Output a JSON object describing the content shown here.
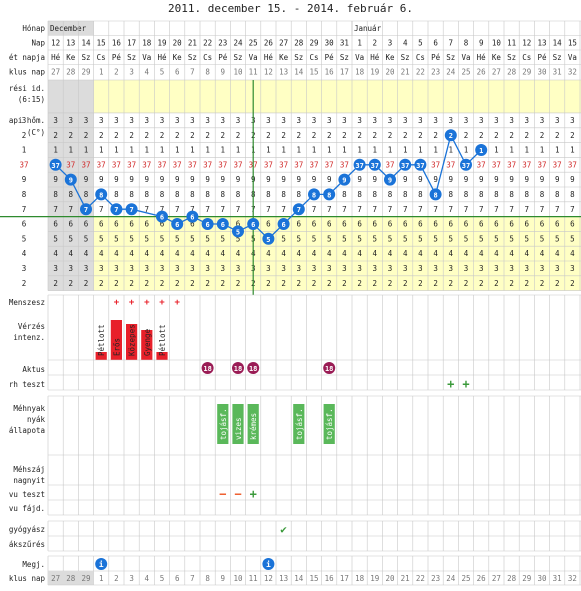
{
  "title": "2011. december 15. - 2014. február 6.",
  "colors": {
    "accent": "#1a73d8",
    "grid": "#c8c8c8",
    "period": "#e8202a",
    "relevant_bg": "#ffffc4",
    "gray_bg": "#dcdcdc",
    "red_num": "#d02828",
    "green_line": "#2e8a2e",
    "pink_marker": "#9a1c55",
    "green_test": "#3b9a3b",
    "orange_test": "#ee5522"
  },
  "labels": {
    "honap": "Hónap",
    "nap": "Nap",
    "het_napja": "ét napja",
    "ciklus_nap": "klus nap",
    "meresi_id": "rési id.",
    "meresi_id2": "(6:15)",
    "apihom": "api hőm.",
    "celsius": "(C°)",
    "menszesz": "Menszesz",
    "verzes": "Vérzés",
    "intenz": "intenz.",
    "aktus": "Aktus",
    "terh_teszt": "rh teszt",
    "mehnyak": "Méhnyak",
    "nyak": "nyák",
    "allapota": "állapota",
    "mehszaj": "Méhszáj",
    "nyitottsag": "nagnyit",
    "ovu_teszt": "vu teszt",
    "ovu_fajd": "vu fájd.",
    "gyogyszer": "gyógyász",
    "szures": "ákszűrés",
    "megj": "Megj.",
    "ciklus_nap2": "klus nap"
  },
  "months": [
    "December",
    "Január"
  ],
  "days": [
    12,
    13,
    14,
    15,
    16,
    17,
    18,
    19,
    20,
    21,
    22,
    23,
    24,
    25,
    26,
    27,
    28,
    29,
    30,
    31,
    1,
    2,
    3,
    4,
    5,
    6,
    7,
    8,
    9,
    10,
    11,
    12,
    13,
    14,
    15,
    16
  ],
  "weekdays": [
    "Hé",
    "Ke",
    "Sz",
    "Cs",
    "Pé",
    "Sz",
    "Va",
    "Hé",
    "Ke",
    "Sz",
    "Cs",
    "Pé",
    "Sz",
    "Va",
    "Hé",
    "Ke",
    "Sz",
    "Cs",
    "Pé",
    "Sz",
    "Va",
    "Hé",
    "Ke",
    "Sz",
    "Cs",
    "Pé",
    "Sz",
    "Va",
    "Hé",
    "Ke",
    "Sz",
    "Cs",
    "Pé",
    "Sz",
    "Va",
    "Hé"
  ],
  "cycle_days": [
    27,
    28,
    29,
    1,
    2,
    3,
    4,
    5,
    6,
    7,
    8,
    9,
    10,
    11,
    12,
    13,
    14,
    15,
    16,
    17,
    18,
    19,
    20,
    21,
    22,
    23,
    24,
    25,
    26,
    27,
    28,
    29,
    30,
    31,
    32,
    33
  ],
  "temp_scale_digits": [
    "3",
    "2",
    "1",
    "37",
    "9",
    "8",
    "7",
    "6",
    "5",
    "4",
    "3",
    "2"
  ],
  "chart_data": {
    "type": "line",
    "ylabel": "(C°)",
    "x_days": [
      12,
      13,
      14,
      15,
      16,
      17,
      18,
      19,
      20,
      21,
      22,
      23,
      24,
      25,
      26,
      27,
      28,
      29,
      30,
      31,
      1,
      2,
      3,
      4,
      5,
      6,
      7,
      8,
      9,
      10,
      11,
      12,
      13,
      14,
      15,
      16
    ],
    "y_unit": "°C",
    "ylim": [
      36.2,
      37.3
    ],
    "series": [
      {
        "values": [
          37.0,
          36.9,
          36.7,
          36.8,
          36.7,
          36.7,
          null,
          36.65,
          36.6,
          36.65,
          36.6,
          36.6,
          36.55,
          36.6,
          36.5,
          36.6,
          36.7,
          36.8,
          36.8,
          36.9,
          37.0,
          37.0,
          36.9,
          37.0,
          37.0,
          36.8,
          37.2,
          37.0,
          37.1,
          null,
          null,
          null,
          null,
          null,
          null,
          null
        ]
      }
    ],
    "coverline": 36.65,
    "ovulation_day": 25
  },
  "menses": {
    "markers": [
      "+",
      "+",
      "+",
      "+",
      "+"
    ],
    "bars": [
      {
        "day_index": 3,
        "label": "Pétlott"
      },
      {
        "day_index": 4,
        "label": "Erős"
      },
      {
        "day_index": 5,
        "label": "Közepes"
      },
      {
        "day_index": 6,
        "label": "Gyenge"
      },
      {
        "day_index": 7,
        "label": "Pétlott"
      }
    ]
  },
  "intercourse_marker": "18",
  "mucus": [
    {
      "day_index": 11,
      "label": "tojásf."
    },
    {
      "day_index": 12,
      "label": "vizes"
    },
    {
      "day_index": 13,
      "label": "krémes"
    },
    {
      "day_index": 16,
      "label": "tojásf."
    },
    {
      "day_index": 18,
      "label": "tojásf."
    }
  ],
  "tests": {
    "pregnancy": [
      "+",
      "+"
    ],
    "ovulation": [
      "−",
      "−",
      "+"
    ]
  },
  "medication_mark": "✔",
  "note_marker": "i"
}
